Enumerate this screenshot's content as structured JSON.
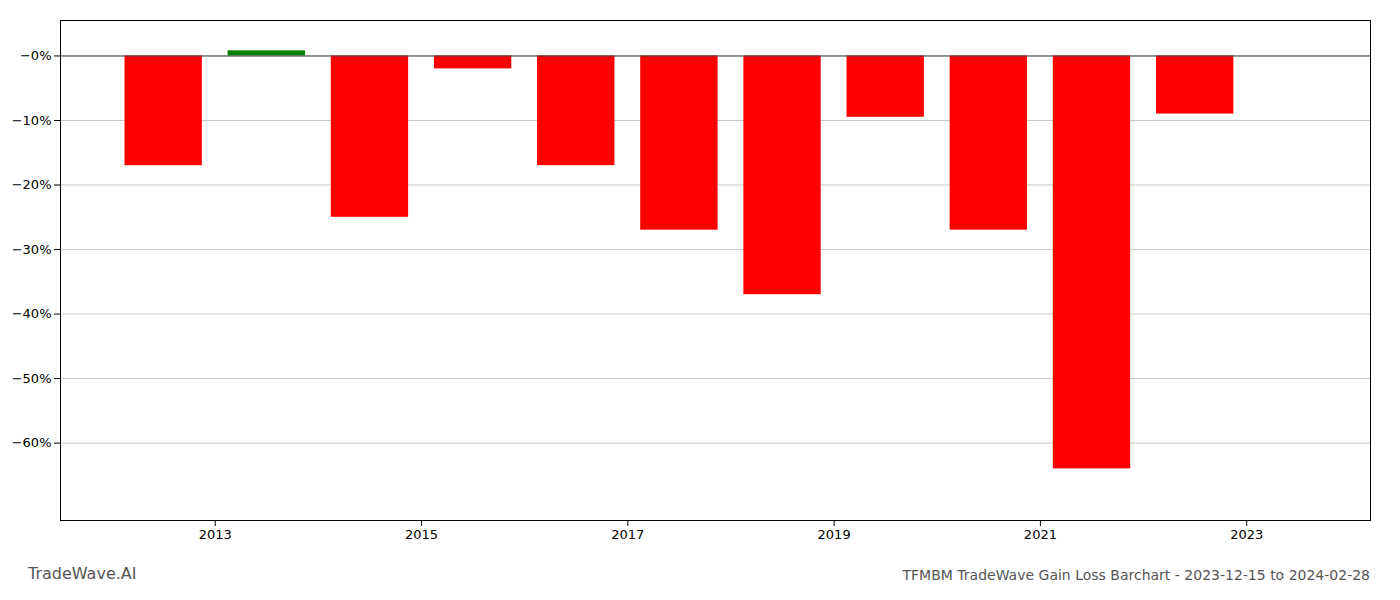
{
  "chart_data": {
    "type": "bar",
    "title": "TFMBM TradeWave Gain Loss Barchart - 2023-12-15 to 2024-02-28",
    "annotations": [
      "TradeWave.AI"
    ],
    "x": [
      2012.5,
      2013.5,
      2014.5,
      2015.5,
      2016.5,
      2017.5,
      2018.5,
      2019.5,
      2020.5,
      2021.5,
      2022.5
    ],
    "values": [
      -0.17,
      0.008,
      -0.25,
      -0.02,
      -0.17,
      -0.27,
      -0.37,
      -0.095,
      -0.27,
      -0.64,
      -0.09
    ],
    "colors": [
      "#ff0000",
      "#008000",
      "#ff0000",
      "#ff0000",
      "#ff0000",
      "#ff0000",
      "#ff0000",
      "#ff0000",
      "#ff0000",
      "#ff0000",
      "#ff0000"
    ],
    "xlim": [
      2011.5,
      2024.2
    ],
    "xticks": [
      2013,
      2015,
      2017,
      2019,
      2021,
      2023
    ],
    "ylim": [
      -0.72,
      0.055
    ],
    "yticks": [
      {
        "value": 0.0,
        "label": "−0%"
      },
      {
        "value": -0.1,
        "label": "−10%"
      },
      {
        "value": -0.2,
        "label": "−20%"
      },
      {
        "value": -0.3,
        "label": "−30%"
      },
      {
        "value": -0.4,
        "label": "−40%"
      },
      {
        "value": -0.5,
        "label": "−50%"
      },
      {
        "value": -0.6,
        "label": "−60%"
      }
    ],
    "grid": true
  }
}
